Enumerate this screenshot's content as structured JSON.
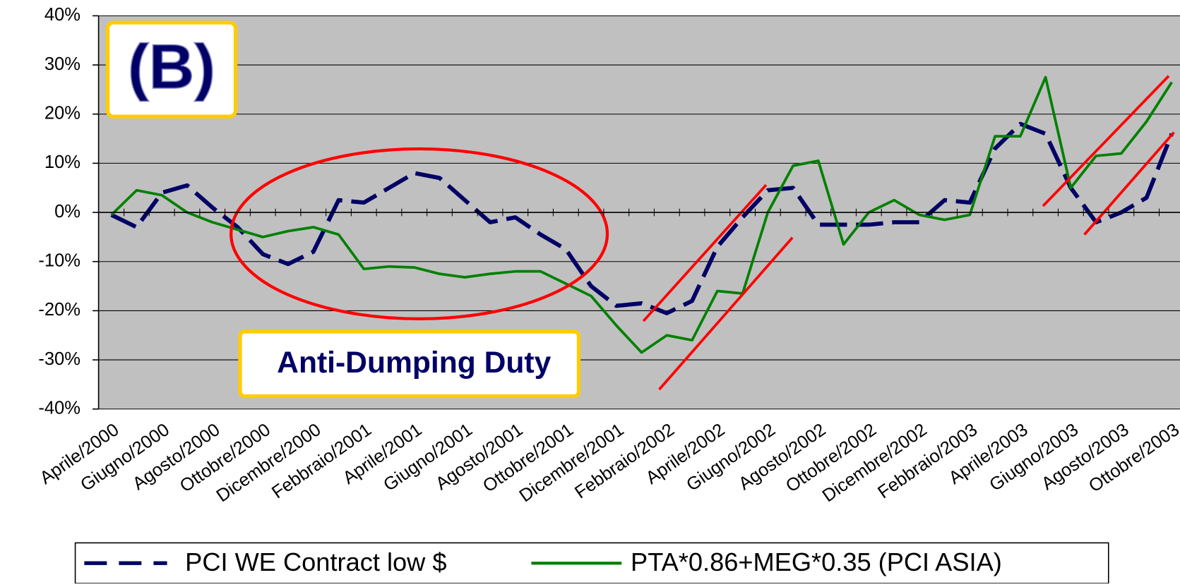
{
  "chart_data": {
    "type": "line",
    "annotations": [
      "(B)",
      "Anti-Dumping Duty"
    ],
    "categories": [
      "Aprile/2000",
      null,
      "Giugno/2000",
      null,
      "Agosto/2000",
      null,
      "Ottobre/2000",
      null,
      "Dicembre/2000",
      null,
      "Febbraio/2001",
      null,
      "Aprile/2001",
      null,
      "Giugno/2001",
      null,
      "Agosto/2001",
      null,
      "Ottobre/2001",
      null,
      "Dicembre/2001",
      null,
      "Febbraio/2002",
      null,
      "Aprile/2002",
      null,
      "Giugno/2002",
      null,
      "Agosto/2002",
      null,
      "Ottobre/2002",
      null,
      "Dicembre/2002",
      null,
      "Febbraio/2003",
      null,
      "Aprile/2003",
      null,
      "Giugno/2003",
      null,
      "Agosto/2003",
      null,
      "Ottobre/2003"
    ],
    "series": [
      {
        "name": "PCI WE Contract low $",
        "color": "#000066",
        "dashed": true,
        "values": [
          -0.5,
          -3,
          4,
          5.5,
          1,
          -3,
          -8.5,
          -10.5,
          -8,
          2.5,
          2,
          5,
          8,
          7,
          2.5,
          -2,
          -1,
          -4.5,
          -7.5,
          -15,
          -19,
          -18.5,
          -20.5,
          -18,
          -7,
          -1,
          4.5,
          5,
          -2.5,
          -2.5,
          -2.5,
          -2,
          -2,
          2.5,
          2,
          13,
          18,
          16,
          5,
          -2,
          0,
          3,
          16
        ]
      },
      {
        "name": "PTA*0.86+MEG*0.35 (PCI ASIA)",
        "color": "#008000",
        "dashed": false,
        "values": [
          -0.5,
          4.5,
          3.5,
          0,
          -2,
          -3.5,
          -5,
          -3.8,
          -3,
          -4.5,
          -11.5,
          -11,
          -11.2,
          -12.5,
          -13.2,
          -12.5,
          -12,
          -12,
          -14.5,
          -17,
          -23,
          -28.5,
          -25,
          -26,
          -16,
          -16.5,
          0,
          9.5,
          10.5,
          -6.5,
          0,
          2.5,
          -0.5,
          -1.5,
          -0.5,
          15.5,
          15.5,
          27.5,
          5,
          11.5,
          12,
          18.5,
          26.5
        ]
      }
    ],
    "ylim": [
      -40,
      40
    ],
    "yticks": [
      {
        "value": -40,
        "label": "-40%"
      },
      {
        "value": -30,
        "label": "-30%"
      },
      {
        "value": -20,
        "label": "-20%"
      },
      {
        "value": -10,
        "label": "-10%"
      },
      {
        "value": 0,
        "label": "0%"
      },
      {
        "value": 10,
        "label": "10%"
      },
      {
        "value": 20,
        "label": "20%"
      },
      {
        "value": 30,
        "label": "30%"
      },
      {
        "value": 40,
        "label": "40%"
      }
    ],
    "grid": true,
    "legend": "bottom"
  }
}
